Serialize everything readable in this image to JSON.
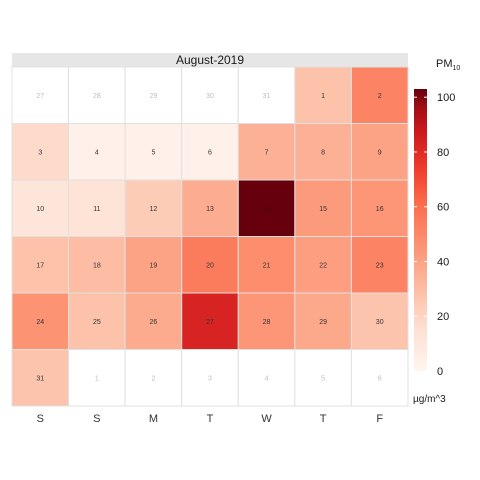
{
  "chart_data": {
    "type": "heatmap",
    "title": "August-2019",
    "weekday_labels": [
      "S",
      "S",
      "M",
      "T",
      "W",
      "T",
      "F"
    ],
    "legend": {
      "title_main": "PM",
      "title_sub": "10",
      "unit": "µg/m^3",
      "min": 0,
      "max": 103,
      "ticks": [
        0,
        20,
        40,
        60,
        80,
        100
      ]
    },
    "colors": {
      "low": "#fff5f0",
      "high": "#67000d",
      "grid": "#e0e0e0",
      "strip": "#e6e6e6",
      "out_of_month_text": "#bdbdbd",
      "in_month_text": "#333333"
    },
    "days": [
      {
        "day": "27",
        "in_month": false
      },
      {
        "day": "28",
        "in_month": false
      },
      {
        "day": "29",
        "in_month": false
      },
      {
        "day": "30",
        "in_month": false
      },
      {
        "day": "31",
        "in_month": false
      },
      {
        "day": "1",
        "in_month": true,
        "value": 28
      },
      {
        "day": "2",
        "in_month": true,
        "value": 52
      },
      {
        "day": "3",
        "in_month": true,
        "value": 18
      },
      {
        "day": "4",
        "in_month": true,
        "value": 3
      },
      {
        "day": "5",
        "in_month": true,
        "value": 3
      },
      {
        "day": "6",
        "in_month": true,
        "value": 3
      },
      {
        "day": "7",
        "in_month": true,
        "value": 35
      },
      {
        "day": "8",
        "in_month": true,
        "value": 35
      },
      {
        "day": "9",
        "in_month": true,
        "value": 40
      },
      {
        "day": "10",
        "in_month": true,
        "value": 12
      },
      {
        "day": "11",
        "in_month": true,
        "value": 13
      },
      {
        "day": "12",
        "in_month": true,
        "value": 24
      },
      {
        "day": "13",
        "in_month": true,
        "value": 36
      },
      {
        "day": "14",
        "in_month": true,
        "value": 103
      },
      {
        "day": "15",
        "in_month": true,
        "value": 43
      },
      {
        "day": "16",
        "in_month": true,
        "value": 45
      },
      {
        "day": "17",
        "in_month": true,
        "value": 28
      },
      {
        "day": "18",
        "in_month": true,
        "value": 30
      },
      {
        "day": "19",
        "in_month": true,
        "value": 40
      },
      {
        "day": "20",
        "in_month": true,
        "value": 55
      },
      {
        "day": "21",
        "in_month": true,
        "value": 48
      },
      {
        "day": "22",
        "in_month": true,
        "value": 42
      },
      {
        "day": "23",
        "in_month": true,
        "value": 52
      },
      {
        "day": "24",
        "in_month": true,
        "value": 46
      },
      {
        "day": "25",
        "in_month": true,
        "value": 28
      },
      {
        "day": "26",
        "in_month": true,
        "value": 37
      },
      {
        "day": "27",
        "in_month": true,
        "value": 83
      },
      {
        "day": "28",
        "in_month": true,
        "value": 45
      },
      {
        "day": "29",
        "in_month": true,
        "value": 38
      },
      {
        "day": "30",
        "in_month": true,
        "value": 27
      },
      {
        "day": "31",
        "in_month": true,
        "value": 27
      },
      {
        "day": "1",
        "in_month": false
      },
      {
        "day": "2",
        "in_month": false
      },
      {
        "day": "3",
        "in_month": false
      },
      {
        "day": "4",
        "in_month": false
      },
      {
        "day": "5",
        "in_month": false
      },
      {
        "day": "6",
        "in_month": false
      }
    ]
  }
}
